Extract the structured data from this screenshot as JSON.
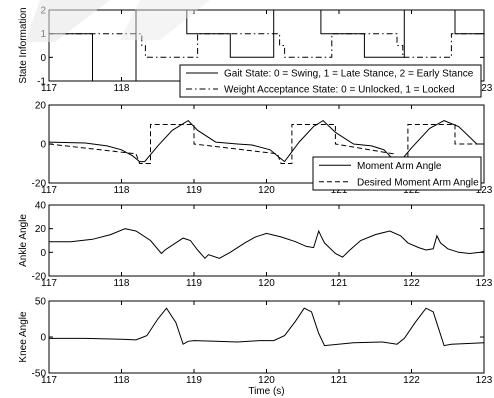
{
  "chart_data": [
    {
      "type": "line",
      "ylabel": "State Information",
      "xlim": [
        117,
        123
      ],
      "ylim": [
        -1,
        2
      ],
      "xticks": [
        117,
        118,
        119,
        120,
        121,
        122,
        123
      ],
      "yticks": [
        -1,
        0,
        1,
        2
      ],
      "legend": "bottom-right",
      "series": [
        {
          "name": "Gait State: 0 = Swing, 1 = Late Stance, 2 = Early Stance",
          "style": "solid",
          "x": [
            117,
            117.6,
            117.6,
            118.2,
            118.2,
            118.9,
            118.9,
            119.5,
            119.5,
            120.1,
            120.1,
            120.75,
            120.75,
            121.35,
            121.35,
            121.9,
            121.9,
            122.6,
            122.6,
            123
          ],
          "y": [
            1,
            1,
            -1,
            -1,
            2,
            2,
            1,
            1,
            0,
            0,
            2,
            2,
            1,
            1,
            0,
            0,
            2,
            2,
            1,
            1
          ]
        },
        {
          "name": "Weight Acceptance State: 0 = Unlocked, 1 = Locked",
          "style": "dashdot",
          "x": [
            117,
            118.28,
            118.28,
            118.33,
            118.33,
            119.05,
            119.05,
            120.18,
            120.18,
            120.25,
            120.25,
            120.9,
            120.9,
            121.8,
            121.8,
            121.88,
            121.88,
            122.55,
            122.55,
            123
          ],
          "y": [
            1,
            1,
            0.5,
            0.5,
            0,
            0,
            1,
            1,
            0.5,
            0.5,
            0,
            0,
            1,
            1,
            0.5,
            0.5,
            0,
            0,
            1,
            1
          ]
        }
      ]
    },
    {
      "type": "line",
      "ylabel": "",
      "xlim": [
        117,
        123
      ],
      "ylim": [
        -20,
        20
      ],
      "xticks": [
        117,
        118,
        119,
        120,
        121,
        122,
        123
      ],
      "yticks": [
        -20,
        0,
        20
      ],
      "legend": "bottom-right",
      "series": [
        {
          "name": "Moment Arm Angle",
          "style": "solid",
          "x": [
            117,
            117.5,
            117.8,
            118.0,
            118.15,
            118.25,
            118.32,
            118.5,
            118.7,
            118.92,
            119.05,
            119.3,
            119.6,
            119.8,
            120.05,
            120.18,
            120.25,
            120.45,
            120.65,
            120.78,
            120.95,
            121.2,
            121.45,
            121.62,
            121.75,
            121.82,
            122.0,
            122.25,
            122.45,
            122.65,
            122.9,
            123
          ],
          "y": [
            1,
            0.5,
            -1,
            -3,
            -6,
            -9,
            -9,
            -1,
            7,
            12,
            7,
            1,
            0,
            -0.5,
            -3,
            -7,
            -9,
            1,
            9,
            12,
            6,
            0,
            -1,
            -3,
            -8,
            -10,
            -2,
            8,
            12,
            9,
            0,
            0
          ]
        },
        {
          "name": "Desired Moment Arm Angle",
          "style": "dashed",
          "x": [
            117,
            118.2,
            118.25,
            118.4,
            118.4,
            119.0,
            119.0,
            120.15,
            120.2,
            120.35,
            120.35,
            120.95,
            120.95,
            121.75,
            121.8,
            121.95,
            121.95,
            122.6,
            122.6,
            123
          ],
          "y": [
            0,
            -5,
            -10,
            -10,
            10,
            10,
            0,
            -5,
            -10,
            -10,
            10,
            10,
            0,
            -5,
            -10,
            -10,
            10,
            10,
            0,
            0
          ]
        }
      ]
    },
    {
      "type": "line",
      "ylabel": "Ankle Angle",
      "xlim": [
        117,
        123
      ],
      "ylim": [
        -20,
        40
      ],
      "xticks": [
        117,
        118,
        119,
        120,
        121,
        122,
        123
      ],
      "yticks": [
        -20,
        0,
        20,
        40
      ],
      "series": [
        {
          "name": "",
          "x": [
            117,
            117.3,
            117.6,
            117.85,
            118.05,
            118.2,
            118.4,
            118.55,
            118.6,
            118.7,
            118.85,
            118.95,
            119.05,
            119.15,
            119.2,
            119.35,
            119.5,
            119.7,
            119.85,
            120.0,
            120.2,
            120.4,
            120.55,
            120.65,
            120.72,
            120.75,
            120.8,
            120.95,
            121.05,
            121.15,
            121.3,
            121.5,
            121.7,
            121.85,
            121.95,
            122.1,
            122.2,
            122.3,
            122.35,
            122.4,
            122.5,
            122.65,
            122.8,
            122.95,
            123
          ],
          "y": [
            9,
            9,
            11,
            15,
            20,
            18,
            10,
            -1,
            2,
            6,
            12,
            10,
            2,
            -5,
            -2,
            -5,
            0,
            8,
            13,
            16,
            13,
            9,
            5,
            4,
            18,
            14,
            8,
            -1,
            -4,
            2,
            10,
            15,
            18,
            14,
            8,
            4,
            2,
            3,
            14,
            8,
            3,
            0,
            -1,
            0,
            1
          ]
        }
      ]
    },
    {
      "type": "line",
      "ylabel": "Knee Angle",
      "xlabel": "Time (s)",
      "xlim": [
        117,
        123
      ],
      "ylim": [
        -50,
        50
      ],
      "xticks": [
        117,
        118,
        119,
        120,
        121,
        122,
        123
      ],
      "yticks": [
        -50,
        0,
        50
      ],
      "series": [
        {
          "name": "",
          "x": [
            117,
            117.5,
            118.0,
            118.2,
            118.35,
            118.5,
            118.62,
            118.75,
            118.85,
            118.92,
            119.0,
            119.3,
            119.6,
            119.9,
            120.1,
            120.25,
            120.4,
            120.52,
            120.62,
            120.72,
            120.8,
            121.2,
            121.6,
            121.8,
            121.9,
            122.05,
            122.2,
            122.3,
            122.38,
            122.45,
            122.55,
            123
          ],
          "y": [
            -2,
            -2,
            -3,
            -4,
            2,
            25,
            40,
            20,
            -10,
            -6,
            -5,
            -6,
            -7,
            -5,
            -5,
            2,
            22,
            40,
            35,
            5,
            -12,
            -8,
            -7,
            -10,
            -2,
            20,
            40,
            35,
            10,
            -12,
            -10,
            -8
          ]
        }
      ]
    }
  ]
}
